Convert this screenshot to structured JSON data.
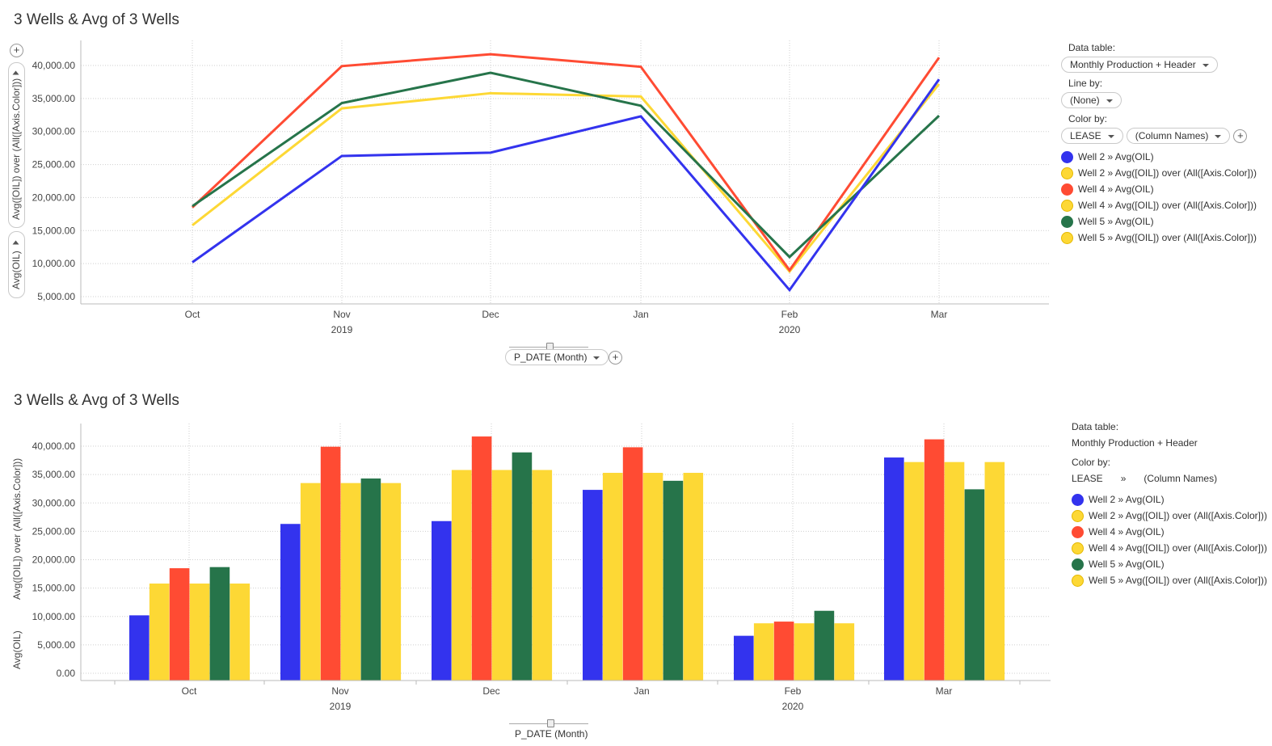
{
  "colors": {
    "well2": "#3333ee",
    "well4": "#ff4b33",
    "well5": "#26744a",
    "avg": "#fdd835"
  },
  "top": {
    "title": "3 Wells & Avg of 3 Wells",
    "y_axis_label_1": "Avg([OIL]) over (All([Axis.Color]))",
    "y_axis_label_2": "Avg(OIL)",
    "x_axis_selector": "P_DATE (Month)",
    "legend": {
      "data_table_label": "Data table:",
      "data_table_value": "Monthly Production + Header",
      "line_by_label": "Line by:",
      "line_by_value": "(None)",
      "color_by_label": "Color by:",
      "color_by_value_1": "LEASE",
      "color_by_value_2": "(Column Names)",
      "items": [
        {
          "label": "Well 2 » Avg(OIL)",
          "color": "#3333ee"
        },
        {
          "label": "Well 2 » Avg([OIL]) over (All([Axis.Color]))",
          "color": "#fdd835"
        },
        {
          "label": "Well 4 » Avg(OIL)",
          "color": "#ff4b33"
        },
        {
          "label": "Well 4 » Avg([OIL]) over (All([Axis.Color]))",
          "color": "#fdd835"
        },
        {
          "label": "Well 5 » Avg(OIL)",
          "color": "#26744a"
        },
        {
          "label": "Well 5 » Avg([OIL]) over (All([Axis.Color]))",
          "color": "#fdd835"
        }
      ]
    }
  },
  "bottom": {
    "title": "3 Wells & Avg of 3 Wells",
    "y_axis_label_1": "Avg([OIL]) over (All([Axis.Color]))",
    "y_axis_label_2": "Avg(OIL)",
    "x_axis_selector": "P_DATE (Month)",
    "legend": {
      "data_table_label": "Data table:",
      "data_table_value": "Monthly Production + Header",
      "color_by_label": "Color by:",
      "color_by_value_1": "LEASE",
      "color_by_sep": "»",
      "color_by_value_2": "(Column Names)",
      "items": [
        {
          "label": "Well 2 » Avg(OIL)",
          "color": "#3333ee"
        },
        {
          "label": "Well 2 » Avg([OIL]) over (All([Axis.Color]))",
          "color": "#fdd835"
        },
        {
          "label": "Well 4 » Avg(OIL)",
          "color": "#ff4b33"
        },
        {
          "label": "Well 4 » Avg([OIL]) over (All([Axis.Color]))",
          "color": "#fdd835"
        },
        {
          "label": "Well 5 » Avg(OIL)",
          "color": "#26744a"
        },
        {
          "label": "Well 5 » Avg([OIL]) over (All([Axis.Color]))",
          "color": "#fdd835"
        }
      ]
    }
  },
  "chart_data": [
    {
      "type": "line",
      "title": "3 Wells & Avg of 3 Wells",
      "categories": [
        "Oct",
        "Nov",
        "Dec",
        "Jan",
        "Feb",
        "Mar"
      ],
      "year_labels": [
        {
          "label": "2019",
          "category": "Nov"
        },
        {
          "label": "2020",
          "category": "Feb"
        }
      ],
      "ylabel": "Avg([OIL]) over (All([Axis.Color])) / Avg(OIL)",
      "yticks": [
        5000,
        10000,
        15000,
        20000,
        25000,
        30000,
        35000,
        40000
      ],
      "ytick_labels": [
        "5,000.00",
        "10,000.00",
        "15,000.00",
        "20,000.00",
        "25,000.00",
        "30,000.00",
        "35,000.00",
        "40,000.00"
      ],
      "ylim": [
        4000,
        42000
      ],
      "grid": true,
      "legend_position": "right",
      "series": [
        {
          "name": "Well 2 » Avg(OIL)",
          "color": "#3333ee",
          "values": [
            10200,
            26300,
            26800,
            32300,
            6000,
            37900
          ]
        },
        {
          "name": "Well 4 » Avg(OIL)",
          "color": "#ff4b33",
          "values": [
            18500,
            39900,
            41700,
            39800,
            9000,
            41200
          ]
        },
        {
          "name": "Well 5 » Avg(OIL)",
          "color": "#26744a",
          "values": [
            18700,
            34300,
            38900,
            33900,
            11000,
            32400
          ]
        },
        {
          "name": "Avg([OIL]) over (All([Axis.Color]))",
          "color": "#fdd835",
          "values": [
            15800,
            33500,
            35800,
            35300,
            8800,
            37200
          ]
        }
      ]
    },
    {
      "type": "bar",
      "title": "3 Wells & Avg of 3 Wells",
      "categories": [
        "Oct",
        "Nov",
        "Dec",
        "Jan",
        "Feb",
        "Mar"
      ],
      "year_labels": [
        {
          "label": "2019",
          "category": "Nov"
        },
        {
          "label": "2020",
          "category": "Feb"
        }
      ],
      "ylabel": "Avg([OIL]) over (All([Axis.Color])) / Avg(OIL)",
      "yticks": [
        0,
        5000,
        10000,
        15000,
        20000,
        25000,
        30000,
        35000,
        40000
      ],
      "ytick_labels": [
        "0.00",
        "5,000.00",
        "10,000.00",
        "15,000.00",
        "20,000.00",
        "25,000.00",
        "30,000.00",
        "35,000.00",
        "40,000.00"
      ],
      "ylim": [
        0,
        42000
      ],
      "grid": true,
      "legend_position": "right",
      "series": [
        {
          "name": "Well 2 » Avg(OIL)",
          "color": "#3333ee",
          "values": [
            10200,
            26300,
            26800,
            32300,
            6600,
            38000
          ]
        },
        {
          "name": "Well 2 » Avg([OIL]) over (All([Axis.Color]))",
          "color": "#fdd835",
          "values": [
            15800,
            33500,
            35800,
            35300,
            8800,
            37200
          ]
        },
        {
          "name": "Well 4 » Avg(OIL)",
          "color": "#ff4b33",
          "values": [
            18500,
            39900,
            41700,
            39800,
            9100,
            41200
          ]
        },
        {
          "name": "Well 4 » Avg([OIL]) over (All([Axis.Color]))",
          "color": "#fdd835",
          "values": [
            15800,
            33500,
            35800,
            35300,
            8800,
            37200
          ]
        },
        {
          "name": "Well 5 » Avg(OIL)",
          "color": "#26744a",
          "values": [
            18700,
            34300,
            38900,
            33900,
            11000,
            32400
          ]
        },
        {
          "name": "Well 5 » Avg([OIL]) over (All([Axis.Color]))",
          "color": "#fdd835",
          "values": [
            15800,
            33500,
            35800,
            35300,
            8800,
            37200
          ]
        }
      ]
    }
  ]
}
